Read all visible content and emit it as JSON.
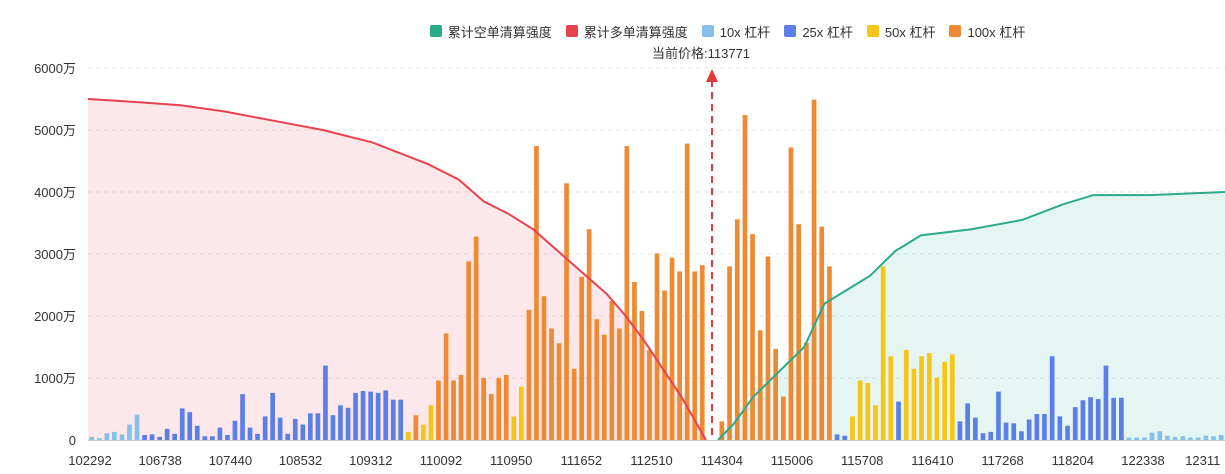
{
  "chart_data": {
    "type": "bar+area",
    "title": "",
    "xlabel": "",
    "ylabel": "",
    "ylim": [
      0,
      6000
    ],
    "y_ticks": [
      "0",
      "1000万",
      "2000万",
      "3000万",
      "4000万",
      "5000万",
      "6000万"
    ],
    "x_tick_labels": [
      "102292",
      "106738",
      "107440",
      "108532",
      "109312",
      "110092",
      "110950",
      "111652",
      "112510",
      "114304",
      "115006",
      "115708",
      "116410",
      "117268",
      "118204",
      "122338",
      "12311"
    ],
    "current_price_label": "当前价格:113771",
    "legend": [
      {
        "name": "累计空单清算强度",
        "color": "#2bab8c"
      },
      {
        "name": "累计多单清算强度",
        "color": "#e8424f"
      },
      {
        "name": "10x 杠杆",
        "color": "#85c1e9"
      },
      {
        "name": "25x 杠杆",
        "color": "#5b7fe6"
      },
      {
        "name": "50x 杠杆",
        "color": "#f5c518"
      },
      {
        "name": "100x 杠杆",
        "color": "#ee8a34"
      }
    ],
    "bar_colors": {
      "10x": "#85c1e9",
      "25x": "#5b7fe6",
      "50x": "#f5c518",
      "100x": "#ee8a34"
    },
    "bars": [
      [
        "10x",
        50
      ],
      [
        "10x",
        30
      ],
      [
        "10x",
        110
      ],
      [
        "10x",
        130
      ],
      [
        "10x",
        90
      ],
      [
        "10x",
        250
      ],
      [
        "10x",
        410
      ],
      [
        "25x",
        80
      ],
      [
        "25x",
        90
      ],
      [
        "25x",
        50
      ],
      [
        "25x",
        180
      ],
      [
        "25x",
        100
      ],
      [
        "25x",
        510
      ],
      [
        "25x",
        450
      ],
      [
        "25x",
        230
      ],
      [
        "25x",
        60
      ],
      [
        "25x",
        60
      ],
      [
        "25x",
        200
      ],
      [
        "25x",
        80
      ],
      [
        "25x",
        310
      ],
      [
        "25x",
        740
      ],
      [
        "25x",
        200
      ],
      [
        "25x",
        100
      ],
      [
        "25x",
        380
      ],
      [
        "25x",
        760
      ],
      [
        "25x",
        360
      ],
      [
        "25x",
        100
      ],
      [
        "25x",
        340
      ],
      [
        "25x",
        250
      ],
      [
        "25x",
        430
      ],
      [
        "25x",
        430
      ],
      [
        "25x",
        1200
      ],
      [
        "25x",
        400
      ],
      [
        "25x",
        560
      ],
      [
        "25x",
        520
      ],
      [
        "25x",
        760
      ],
      [
        "25x",
        790
      ],
      [
        "25x",
        780
      ],
      [
        "25x",
        760
      ],
      [
        "25x",
        800
      ],
      [
        "25x",
        650
      ],
      [
        "25x",
        650
      ],
      [
        "50x",
        130
      ],
      [
        "100x",
        400
      ],
      [
        "50x",
        250
      ],
      [
        "50x",
        560
      ],
      [
        "100x",
        960
      ],
      [
        "100x",
        1720
      ],
      [
        "100x",
        960
      ],
      [
        "100x",
        1050
      ],
      [
        "100x",
        2880
      ],
      [
        "100x",
        3280
      ],
      [
        "100x",
        1000
      ],
      [
        "100x",
        740
      ],
      [
        "100x",
        1000
      ],
      [
        "100x",
        1050
      ],
      [
        "50x",
        380
      ],
      [
        "50x",
        860
      ],
      [
        "100x",
        2100
      ],
      [
        "100x",
        4740
      ],
      [
        "100x",
        2320
      ],
      [
        "100x",
        1800
      ],
      [
        "100x",
        1560
      ],
      [
        "100x",
        4140
      ],
      [
        "100x",
        1150
      ],
      [
        "100x",
        2630
      ],
      [
        "100x",
        3400
      ],
      [
        "100x",
        1950
      ],
      [
        "100x",
        1700
      ],
      [
        "100x",
        2240
      ],
      [
        "100x",
        1800
      ],
      [
        "100x",
        4740
      ],
      [
        "100x",
        2550
      ],
      [
        "100x",
        2080
      ],
      [
        "100x",
        1450
      ],
      [
        "100x",
        3010
      ],
      [
        "100x",
        2410
      ],
      [
        "100x",
        2940
      ],
      [
        "100x",
        2720
      ],
      [
        "100x",
        4780
      ],
      [
        "100x",
        2720
      ],
      [
        "100x",
        2820
      ],
      [
        "100x",
        300
      ],
      [
        "100x",
        2800
      ],
      [
        "100x",
        3560
      ],
      [
        "100x",
        5240
      ],
      [
        "100x",
        3320
      ],
      [
        "100x",
        1770
      ],
      [
        "100x",
        2960
      ],
      [
        "100x",
        1470
      ],
      [
        "100x",
        700
      ],
      [
        "100x",
        4720
      ],
      [
        "100x",
        3480
      ],
      [
        "100x",
        1570
      ],
      [
        "100x",
        5490
      ],
      [
        "100x",
        3440
      ],
      [
        "100x",
        2800
      ],
      [
        "25x",
        90
      ],
      [
        "25x",
        70
      ],
      [
        "50x",
        380
      ],
      [
        "50x",
        960
      ],
      [
        "50x",
        920
      ],
      [
        "50x",
        560
      ],
      [
        "50x",
        2800
      ],
      [
        "50x",
        1350
      ],
      [
        "25x",
        620
      ],
      [
        "50x",
        1450
      ],
      [
        "50x",
        1150
      ],
      [
        "50x",
        1350
      ],
      [
        "50x",
        1400
      ],
      [
        "50x",
        1010
      ],
      [
        "50x",
        1260
      ],
      [
        "50x",
        1380
      ],
      [
        "25x",
        300
      ],
      [
        "25x",
        590
      ],
      [
        "25x",
        360
      ],
      [
        "25x",
        110
      ],
      [
        "25x",
        130
      ],
      [
        "25x",
        780
      ],
      [
        "25x",
        280
      ],
      [
        "25x",
        270
      ],
      [
        "25x",
        140
      ],
      [
        "25x",
        330
      ],
      [
        "25x",
        420
      ],
      [
        "25x",
        420
      ],
      [
        "25x",
        1350
      ],
      [
        "25x",
        380
      ],
      [
        "25x",
        230
      ],
      [
        "25x",
        530
      ],
      [
        "25x",
        640
      ],
      [
        "25x",
        690
      ],
      [
        "25x",
        660
      ],
      [
        "25x",
        1200
      ],
      [
        "25x",
        680
      ],
      [
        "25x",
        680
      ],
      [
        "10x",
        40
      ],
      [
        "10x",
        40
      ],
      [
        "10x",
        40
      ],
      [
        "10x",
        120
      ],
      [
        "10x",
        140
      ],
      [
        "10x",
        70
      ],
      [
        "10x",
        50
      ],
      [
        "10x",
        60
      ],
      [
        "10x",
        40
      ],
      [
        "10x",
        40
      ],
      [
        "10x",
        70
      ],
      [
        "10x",
        60
      ],
      [
        "10x",
        80
      ]
    ],
    "long_cumulative": [
      [
        0,
        5500
      ],
      [
        0.08,
        5450
      ],
      [
        0.15,
        5400
      ],
      [
        0.22,
        5300
      ],
      [
        0.3,
        5150
      ],
      [
        0.38,
        5000
      ],
      [
        0.46,
        4800
      ],
      [
        0.55,
        4450
      ],
      [
        0.6,
        4200
      ],
      [
        0.64,
        3850
      ],
      [
        0.68,
        3650
      ],
      [
        0.72,
        3400
      ],
      [
        0.76,
        3050
      ],
      [
        0.8,
        2700
      ],
      [
        0.84,
        2350
      ],
      [
        0.87,
        2000
      ],
      [
        0.9,
        1600
      ],
      [
        0.93,
        1150
      ],
      [
        0.96,
        700
      ],
      [
        1,
        0
      ]
    ],
    "short_cumulative": [
      [
        0,
        0
      ],
      [
        0.03,
        250
      ],
      [
        0.07,
        700
      ],
      [
        0.12,
        1100
      ],
      [
        0.17,
        1500
      ],
      [
        0.21,
        2200
      ],
      [
        0.26,
        2450
      ],
      [
        0.3,
        2650
      ],
      [
        0.35,
        3050
      ],
      [
        0.4,
        3300
      ],
      [
        0.5,
        3400
      ],
      [
        0.6,
        3550
      ],
      [
        0.68,
        3800
      ],
      [
        0.74,
        3950
      ],
      [
        0.85,
        3950
      ],
      [
        1,
        4000
      ]
    ],
    "grid": "horizontal-dashed"
  }
}
